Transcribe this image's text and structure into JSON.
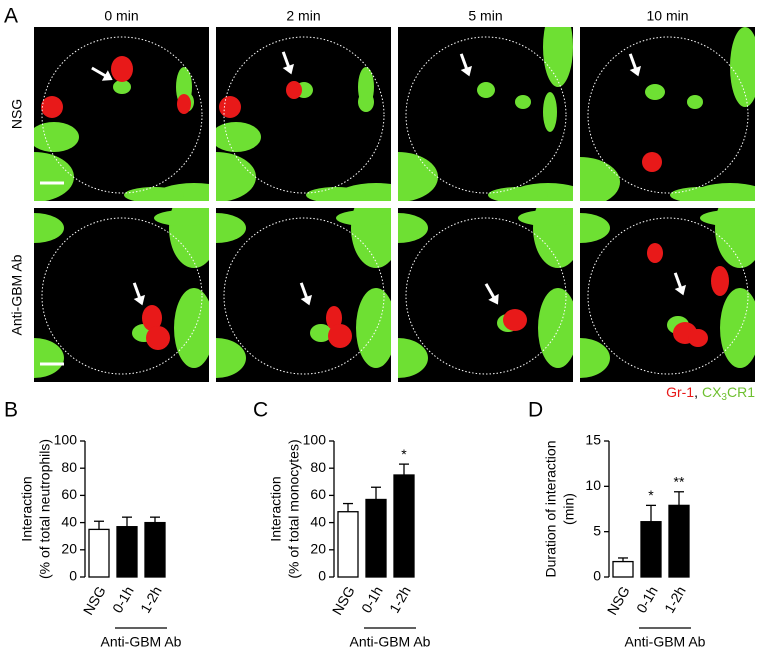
{
  "panel_labels": [
    "A",
    "B",
    "C",
    "D"
  ],
  "time_points": [
    "0 min",
    "2 min",
    "5 min",
    "10 min"
  ],
  "row_labels": [
    "NSG",
    "Anti-GBM Ab"
  ],
  "legend": {
    "red_label": "Gr-1",
    "separator": ",",
    "green_label_parts": [
      "CX",
      "3",
      "CR1"
    ]
  },
  "chart_data": [
    {
      "type": "bar",
      "ylabel": [
        "Interaction",
        "(% of total neutrophils)"
      ],
      "categories": [
        "NSG",
        "0-1h",
        "1-2h"
      ],
      "values": [
        35,
        37,
        40
      ],
      "errors": [
        6,
        7,
        4
      ],
      "colors": [
        "#ffffff",
        "#000000",
        "#000000"
      ],
      "value_annotations": [
        null,
        null,
        null
      ],
      "ylim": [
        0,
        100
      ],
      "yticks": [
        0,
        20,
        40,
        60,
        80,
        100
      ],
      "group_label": "Anti-GBM Ab"
    },
    {
      "type": "bar",
      "ylabel": [
        "Interaction",
        "(% of total monocytes)"
      ],
      "categories": [
        "NSG",
        "0-1h",
        "1-2h"
      ],
      "values": [
        48,
        57,
        75
      ],
      "errors": [
        6,
        9,
        8
      ],
      "colors": [
        "#ffffff",
        "#000000",
        "#000000"
      ],
      "value_annotations": [
        null,
        null,
        "*"
      ],
      "ylim": [
        0,
        100
      ],
      "yticks": [
        0,
        20,
        40,
        60,
        80,
        100
      ],
      "group_label": "Anti-GBM Ab"
    },
    {
      "type": "bar",
      "ylabel": [
        "Duration of interaction",
        "(min)"
      ],
      "categories": [
        "NSG",
        "0-1h",
        "1-2h"
      ],
      "values": [
        1.7,
        6.1,
        7.9
      ],
      "errors": [
        0.4,
        1.8,
        1.5
      ],
      "colors": [
        "#ffffff",
        "#000000",
        "#000000"
      ],
      "value_annotations": [
        null,
        "*",
        "**"
      ],
      "ylim": [
        0,
        15
      ],
      "yticks": [
        0,
        5,
        10,
        15
      ],
      "group_label": "Anti-GBM Ab"
    }
  ]
}
